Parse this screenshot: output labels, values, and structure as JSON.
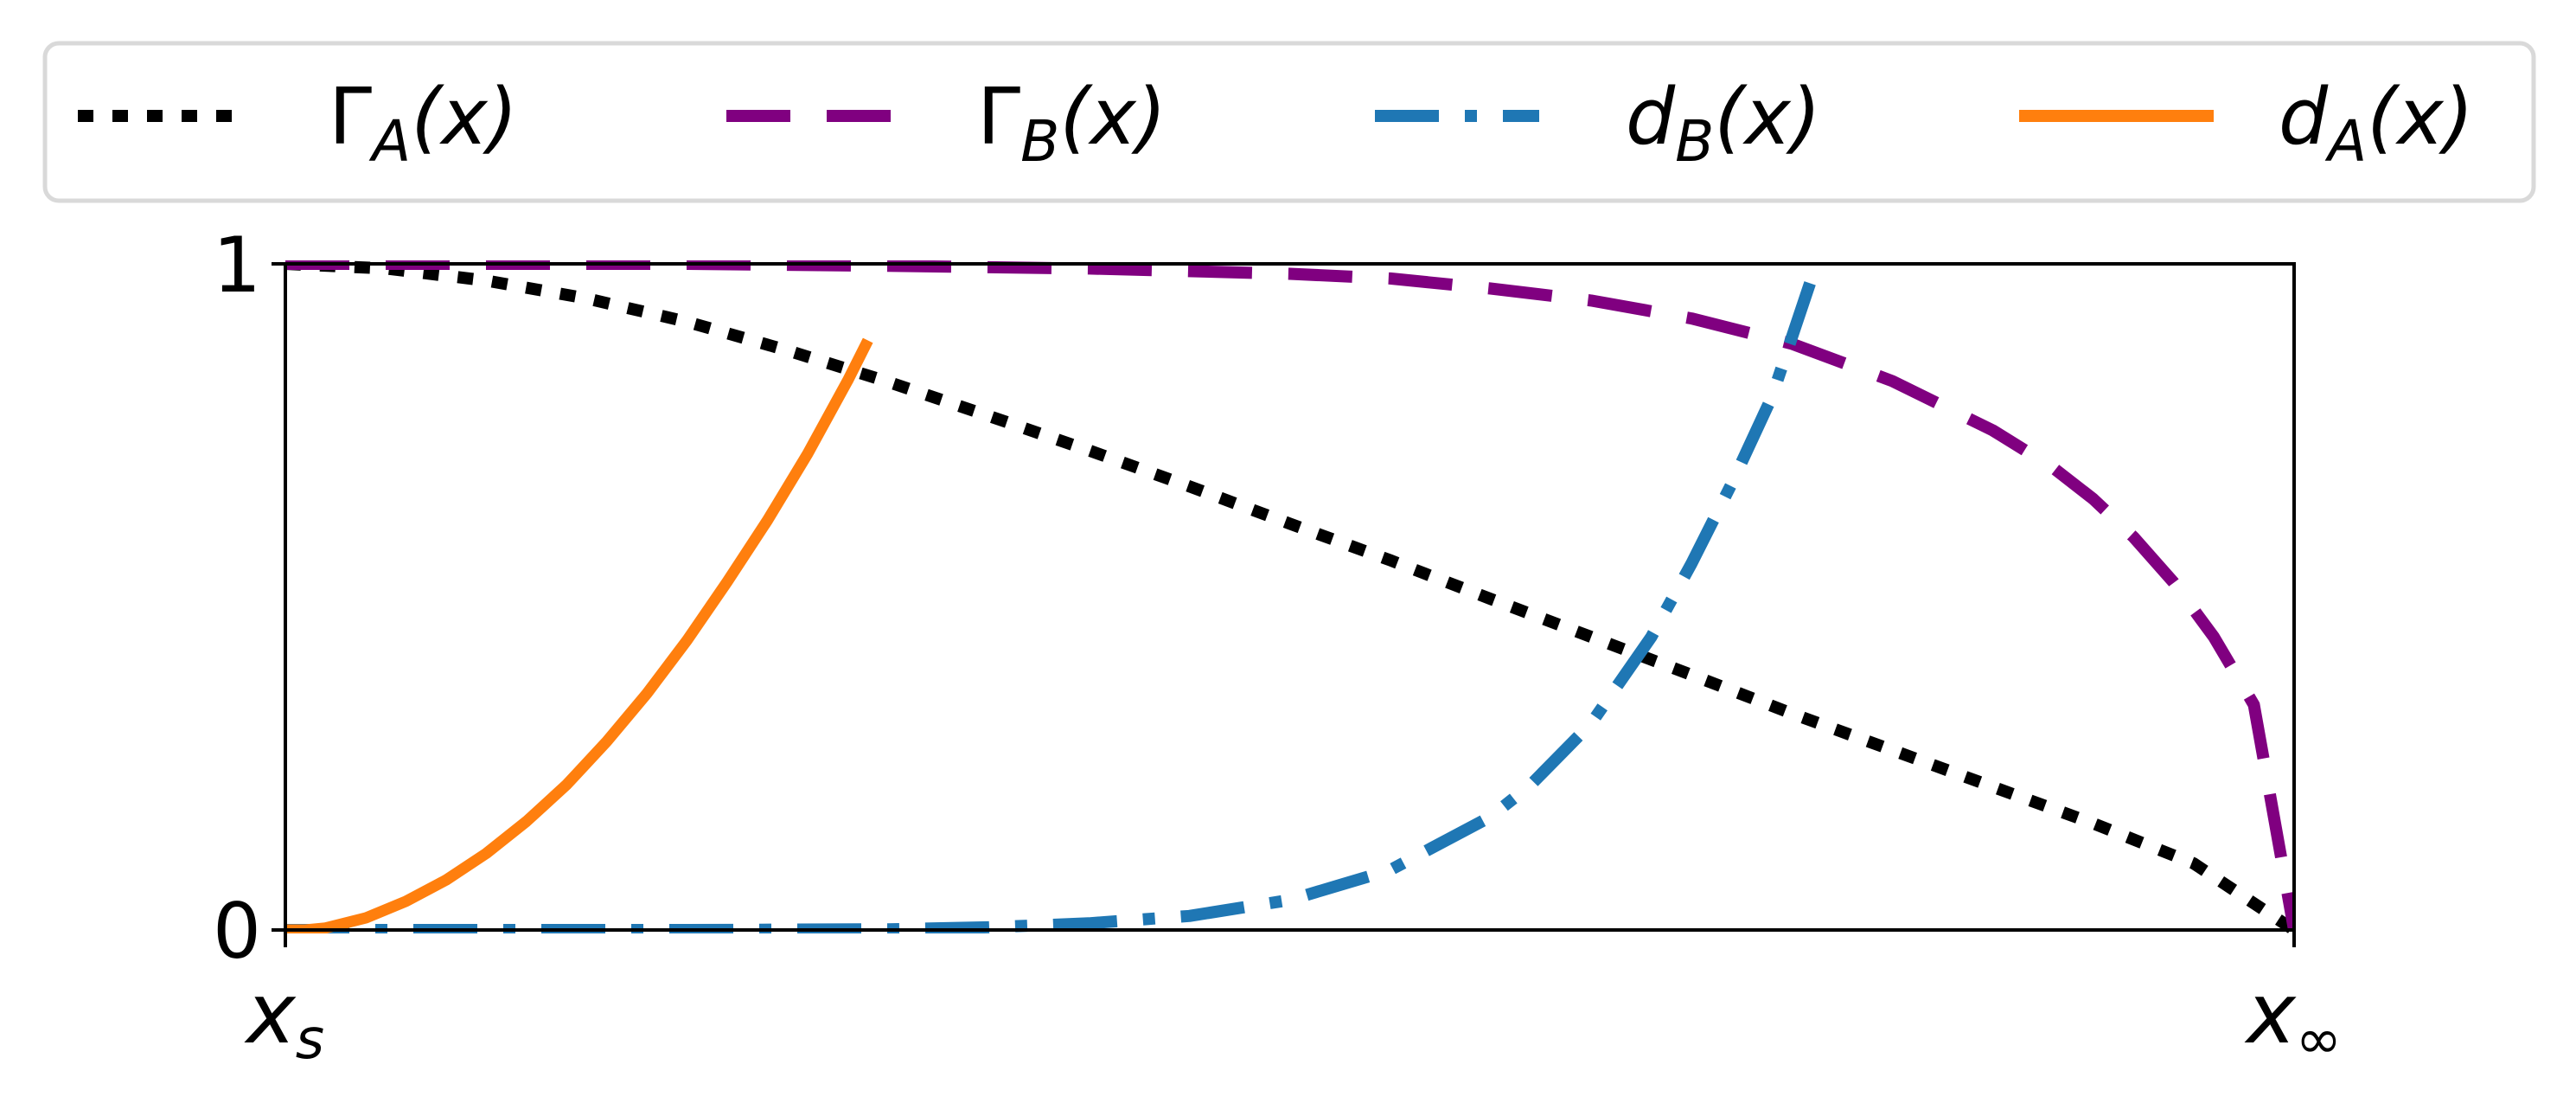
{
  "chart_data": {
    "type": "line",
    "title": "",
    "xlabel": "",
    "ylabel": "",
    "xlim": [
      0,
      1
    ],
    "ylim": [
      0,
      1
    ],
    "grid": false,
    "legend_placement": "top",
    "x_ticks": [
      {
        "value": 0,
        "base": "x",
        "sub": "s"
      },
      {
        "value": 1,
        "base": "x",
        "sub": "∞"
      }
    ],
    "y_ticks": [
      {
        "value": 0,
        "label": "0"
      },
      {
        "value": 1,
        "label": "1"
      }
    ],
    "series": [
      {
        "name": "Γ_A(x)",
        "legend": {
          "base": "Γ",
          "sub": "A",
          "arg": "(x)"
        },
        "style": "dotted",
        "color": "#000000",
        "points": [
          [
            0.0,
            1.0
          ],
          [
            0.05,
            0.993
          ],
          [
            0.1,
            0.975
          ],
          [
            0.15,
            0.948
          ],
          [
            0.2,
            0.913
          ],
          [
            0.25,
            0.87
          ],
          [
            0.3,
            0.823
          ],
          [
            0.35,
            0.772
          ],
          [
            0.4,
            0.72
          ],
          [
            0.45,
            0.666
          ],
          [
            0.5,
            0.61
          ],
          [
            0.55,
            0.555
          ],
          [
            0.6,
            0.497
          ],
          [
            0.65,
            0.44
          ],
          [
            0.7,
            0.383
          ],
          [
            0.75,
            0.325
          ],
          [
            0.8,
            0.27
          ],
          [
            0.85,
            0.215
          ],
          [
            0.9,
            0.16
          ],
          [
            0.95,
            0.1
          ],
          [
            1.0,
            0.0
          ]
        ]
      },
      {
        "name": "Γ_B(x)",
        "legend": {
          "base": "Γ",
          "sub": "B",
          "arg": "(x)"
        },
        "style": "dashed",
        "color": "#800080",
        "points": [
          [
            0.0,
            1.0
          ],
          [
            0.1,
            1.0
          ],
          [
            0.2,
            1.0
          ],
          [
            0.3,
            0.997
          ],
          [
            0.4,
            0.993
          ],
          [
            0.5,
            0.985
          ],
          [
            0.55,
            0.978
          ],
          [
            0.6,
            0.963
          ],
          [
            0.65,
            0.945
          ],
          [
            0.7,
            0.918
          ],
          [
            0.75,
            0.88
          ],
          [
            0.8,
            0.824
          ],
          [
            0.85,
            0.75
          ],
          [
            0.88,
            0.694
          ],
          [
            0.9,
            0.647
          ],
          [
            0.92,
            0.59
          ],
          [
            0.94,
            0.522
          ],
          [
            0.96,
            0.44
          ],
          [
            0.98,
            0.338
          ],
          [
            1.0,
            0.0
          ]
        ]
      },
      {
        "name": "d_B(x)",
        "legend": {
          "base": "d",
          "sub": "B",
          "arg": "(x)"
        },
        "style": "dashdot",
        "color": "#1f77b4",
        "points": [
          [
            0.0,
            0.0
          ],
          [
            0.1,
            0.0
          ],
          [
            0.2,
            0.0
          ],
          [
            0.3,
            0.001
          ],
          [
            0.35,
            0.004
          ],
          [
            0.4,
            0.01
          ],
          [
            0.45,
            0.021
          ],
          [
            0.5,
            0.045
          ],
          [
            0.55,
            0.09
          ],
          [
            0.6,
            0.17
          ],
          [
            0.62,
            0.218
          ],
          [
            0.65,
            0.31
          ],
          [
            0.68,
            0.44
          ],
          [
            0.7,
            0.55
          ],
          [
            0.72,
            0.67
          ],
          [
            0.74,
            0.8
          ],
          [
            0.76,
            0.98
          ]
        ]
      },
      {
        "name": "d_A(x)",
        "legend": {
          "base": "d",
          "sub": "A",
          "arg": "(x)"
        },
        "style": "solid",
        "color": "#ff7f0e",
        "points": [
          [
            0.0,
            0.0
          ],
          [
            0.01,
            0.0
          ],
          [
            0.02,
            0.003
          ],
          [
            0.04,
            0.018
          ],
          [
            0.06,
            0.043
          ],
          [
            0.08,
            0.075
          ],
          [
            0.1,
            0.115
          ],
          [
            0.12,
            0.163
          ],
          [
            0.14,
            0.218
          ],
          [
            0.16,
            0.283
          ],
          [
            0.18,
            0.355
          ],
          [
            0.2,
            0.435
          ],
          [
            0.22,
            0.523
          ],
          [
            0.24,
            0.615
          ],
          [
            0.26,
            0.715
          ],
          [
            0.27,
            0.77
          ],
          [
            0.28,
            0.825
          ],
          [
            0.29,
            0.885
          ]
        ]
      }
    ]
  }
}
